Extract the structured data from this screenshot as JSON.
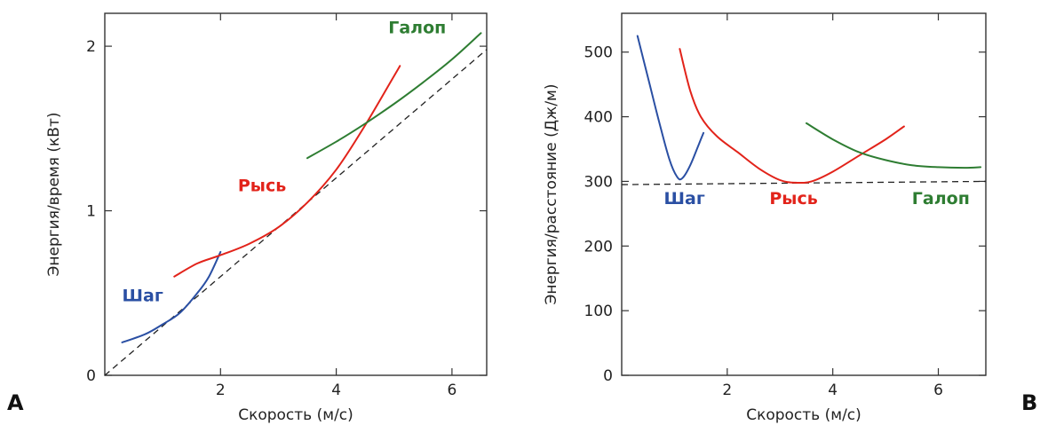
{
  "chart_data": [
    {
      "panel_label": "A",
      "type": "line",
      "xlabel": "Скорость (м/с)",
      "ylabel": "Энергия/время (кВт)",
      "xlim": [
        0,
        6.6
      ],
      "ylim": [
        0,
        2.2
      ],
      "xticks": [
        2,
        4,
        6
      ],
      "xtick_labels": [
        "2",
        "4",
        "6"
      ],
      "yticks": [
        0,
        1,
        2
      ],
      "ytick_labels": [
        "0",
        "1",
        "2"
      ],
      "grid": false,
      "series": [
        {
          "name": "Шаг",
          "color": "#2a4fa3",
          "x": [
            0.3,
            0.7,
            1.0,
            1.3,
            1.6,
            1.8,
            2.0
          ],
          "y": [
            0.2,
            0.25,
            0.31,
            0.38,
            0.5,
            0.6,
            0.75
          ]
        },
        {
          "name": "Рысь",
          "color": "#e2231a",
          "x": [
            1.2,
            1.6,
            2.0,
            2.5,
            3.0,
            3.5,
            4.0,
            4.5,
            5.0,
            5.1
          ],
          "y": [
            0.6,
            0.68,
            0.73,
            0.8,
            0.9,
            1.05,
            1.25,
            1.52,
            1.82,
            1.88
          ]
        },
        {
          "name": "Галоп",
          "color": "#2e7d32",
          "x": [
            3.5,
            4.0,
            4.5,
            5.0,
            5.5,
            6.0,
            6.5
          ],
          "y": [
            1.32,
            1.42,
            1.53,
            1.65,
            1.78,
            1.92,
            2.08
          ]
        }
      ],
      "reference_line": {
        "style": "dashed",
        "x": [
          0,
          6.6
        ],
        "y": [
          0,
          1.98
        ]
      },
      "series_label_positions": [
        {
          "text": "Шаг",
          "x": 0.3,
          "y": 0.45
        },
        {
          "text": "Рысь",
          "x": 2.3,
          "y": 1.12
        },
        {
          "text": "Галоп",
          "x": 4.9,
          "y": 2.08
        }
      ]
    },
    {
      "panel_label": "B",
      "type": "line",
      "xlabel": "Скорость (м/с)",
      "ylabel": "Энергия/расстояние (Дж/м)",
      "xlim": [
        0,
        6.9
      ],
      "ylim": [
        0,
        560
      ],
      "xticks": [
        2,
        4,
        6
      ],
      "xtick_labels": [
        "2",
        "4",
        "6"
      ],
      "yticks": [
        0,
        100,
        200,
        300,
        400,
        500
      ],
      "ytick_labels": [
        "0",
        "100",
        "200",
        "300",
        "400",
        "500"
      ],
      "grid": false,
      "series": [
        {
          "name": "Шаг",
          "color": "#2a4fa3",
          "x": [
            0.3,
            0.5,
            0.7,
            0.9,
            1.05,
            1.15,
            1.3,
            1.45,
            1.55
          ],
          "y": [
            525,
            460,
            395,
            335,
            307,
            305,
            325,
            355,
            375
          ]
        },
        {
          "name": "Рысь",
          "color": "#e2231a",
          "x": [
            1.1,
            1.3,
            1.5,
            1.8,
            2.2,
            2.6,
            3.0,
            3.3,
            3.6,
            4.0,
            4.5,
            5.0,
            5.35
          ],
          "y": [
            505,
            440,
            400,
            370,
            345,
            320,
            302,
            298,
            300,
            315,
            340,
            365,
            385
          ]
        },
        {
          "name": "Галоп",
          "color": "#2e7d32",
          "x": [
            3.5,
            4.0,
            4.5,
            5.0,
            5.5,
            6.0,
            6.5,
            6.8
          ],
          "y": [
            390,
            365,
            345,
            333,
            325,
            322,
            321,
            322
          ]
        }
      ],
      "reference_line": {
        "style": "dashed",
        "x": [
          0,
          6.9
        ],
        "y": [
          295,
          300
        ]
      },
      "series_label_positions": [
        {
          "text": "Шаг",
          "x": 0.8,
          "y": 265
        },
        {
          "text": "Рысь",
          "x": 2.8,
          "y": 265
        },
        {
          "text": "Галоп",
          "x": 5.5,
          "y": 265
        }
      ]
    }
  ]
}
